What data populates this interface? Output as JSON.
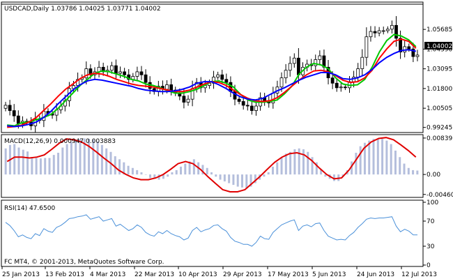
{
  "colors": {
    "frame": "#000000",
    "candle_up": "#ffffff",
    "candle_down": "#000000",
    "ma_fast": "#00c800",
    "ma_mid": "#ff0000",
    "ma_slow": "#0000ff",
    "macd_hist": "#b4bedc",
    "macd_signal": "#e00000",
    "rsi_line": "#4a90d9",
    "price_box": "#000000",
    "price_box_text": "#ffffff"
  },
  "chart_data": [
    {
      "type": "candlestick",
      "title": "USDCAD,Daily  1.03786 1.04025 1.03771 1.04002",
      "current_price": "1.04002",
      "ylim": [
        0.99,
        1.0725
      ],
      "y_tick_labels": [
        {
          "label": "1.05685",
          "value": 1.05685
        },
        {
          "label": "1.04390",
          "value": 1.0439
        },
        {
          "label": "1.03095",
          "value": 1.03095
        },
        {
          "label": "1.01800",
          "value": 1.018
        },
        {
          "label": "1.00505",
          "value": 1.00505
        },
        {
          "label": "0.99245",
          "value": 0.99245
        }
      ],
      "x_tick_labels": [
        "25 Jan 2013",
        "13 Feb 2013",
        "4 Mar 2013",
        "22 Mar 2013",
        "10 Apr 2013",
        "29 Apr 2013",
        "17 May 2013",
        "5 Jun 2013",
        "24 Jun 2013",
        "12 Jul 2013"
      ],
      "close": [
        1.007,
        1.0035,
        1.0,
        0.995,
        0.9965,
        0.996,
        0.9935,
        0.998,
        0.997,
        1.003,
        1.0015,
        1.0005,
        1.004,
        1.0065,
        1.01,
        1.018,
        1.02,
        1.024,
        1.025,
        1.031,
        1.027,
        1.029,
        1.032,
        1.029,
        1.03,
        1.033,
        1.028,
        1.029,
        1.027,
        1.024,
        1.026,
        1.029,
        1.027,
        1.022,
        1.018,
        1.016,
        1.0195,
        1.0175,
        1.0205,
        1.017,
        1.015,
        1.013,
        1.009,
        1.011,
        1.018,
        1.022,
        1.0185,
        1.02,
        1.0215,
        1.0255,
        1.027,
        1.024,
        1.022,
        1.016,
        1.011,
        1.0095,
        1.007,
        1.0065,
        1.0035,
        1.0065,
        1.012,
        1.0095,
        1.0085,
        1.015,
        1.019,
        1.025,
        1.03,
        1.0345,
        1.038,
        1.027,
        1.032,
        1.034,
        1.033,
        1.037,
        1.0395,
        1.032,
        1.025,
        1.0215,
        1.0185,
        1.019,
        1.0185,
        1.0225,
        1.0255,
        1.031,
        1.0385,
        1.052,
        1.0555,
        1.0545,
        1.056,
        1.056,
        1.057,
        1.0595,
        1.051,
        1.042,
        1.0455,
        1.044,
        1.039,
        1.04
      ],
      "series": [
        {
          "name": "MA fast",
          "values": [
            0.994,
            0.9935,
            0.9955,
            0.996,
            0.9975,
            0.999,
            1.001,
            1.005,
            1.01,
            1.015,
            1.02,
            1.024,
            1.028,
            1.0295,
            1.029,
            1.0275,
            1.026,
            1.024,
            1.023,
            1.021,
            1.02,
            1.0185,
            1.0165,
            1.015,
            1.015,
            1.016,
            1.0175,
            1.02,
            1.0225,
            1.023,
            1.0215,
            1.019,
            1.014,
            1.0105,
            1.009,
            1.009,
            1.0095,
            1.0105,
            1.0145,
            1.0195,
            1.0275,
            1.032,
            1.0345,
            1.0335,
            1.031,
            1.025,
            1.021,
            1.02,
            1.0205,
            1.024,
            1.032,
            1.042,
            1.0495,
            1.0535,
            1.0525,
            1.05,
            1.0455
          ]
        },
        {
          "name": "MA mid",
          "values": [
            0.9925,
            0.993,
            0.994,
            0.996,
            0.999,
            1.0035,
            1.008,
            1.013,
            1.0175,
            1.021,
            1.0245,
            1.027,
            1.028,
            1.0275,
            1.026,
            1.024,
            1.0225,
            1.021,
            1.02,
            1.0195,
            1.019,
            1.018,
            1.017,
            1.016,
            1.016,
            1.017,
            1.019,
            1.021,
            1.0225,
            1.022,
            1.02,
            1.017,
            1.014,
            1.0115,
            1.01,
            1.0095,
            1.01,
            1.012,
            1.0155,
            1.0195,
            1.0235,
            1.027,
            1.0295,
            1.03,
            1.029,
            1.0265,
            1.0235,
            1.022,
            1.0225,
            1.025,
            1.03,
            1.038,
            1.044,
            1.049,
            1.0505,
            1.049,
            1.0445
          ]
        },
        {
          "name": "MA slow",
          "values": [
            0.9935,
            0.993,
            0.9935,
            0.9945,
            0.996,
            0.999,
            1.003,
            1.008,
            1.0125,
            1.017,
            1.0205,
            1.023,
            1.024,
            1.0235,
            1.0225,
            1.0215,
            1.0205,
            1.0195,
            1.018,
            1.017,
            1.0165,
            1.016,
            1.016,
            1.0165,
            1.0175,
            1.019,
            1.0215,
            1.0225,
            1.0225,
            1.0205,
            1.018,
            1.015,
            1.0125,
            1.011,
            1.0105,
            1.0115,
            1.014,
            1.0165,
            1.0185,
            1.021,
            1.0235,
            1.0255,
            1.027,
            1.0285,
            1.0285,
            1.027,
            1.0245,
            1.024,
            1.025,
            1.027,
            1.0305,
            1.035,
            1.0385,
            1.041,
            1.043,
            1.0435,
            1.0425
          ]
        }
      ]
    },
    {
      "type": "bar",
      "title": "MACD(12,26,9) 0.000947 0.003883",
      "ylim": [
        -0.0048,
        0.0087
      ],
      "y_tick_labels": [
        {
          "label": "0.008393",
          "value": 0.008393
        },
        {
          "label": "0.00",
          "value": 0.0
        },
        {
          "label": "-0.004600",
          "value": -0.0046
        }
      ],
      "histogram": [
        0.006,
        0.0068,
        0.007,
        0.0062,
        0.0057,
        0.0053,
        0.004,
        0.0038,
        0.0037,
        0.0038,
        0.0038,
        0.0045,
        0.005,
        0.0062,
        0.007,
        0.0075,
        0.0078,
        0.0082,
        0.0083,
        0.0082,
        0.008,
        0.0076,
        0.0068,
        0.006,
        0.0052,
        0.0042,
        0.0035,
        0.0028,
        0.002,
        0.0015,
        0.001,
        0.0005,
        0.0,
        -0.0008,
        -0.001,
        -0.0012,
        -0.001,
        -0.0005,
        0.0005,
        0.001,
        0.0018,
        0.0025,
        0.003,
        0.0035,
        0.0028,
        0.0022,
        0.0015,
        0.0005,
        -0.0005,
        -0.0012,
        -0.0016,
        -0.002,
        -0.0024,
        -0.0028,
        -0.003,
        -0.0031,
        -0.0028,
        -0.002,
        -0.0012,
        -0.0005,
        0.0005,
        0.0018,
        0.0028,
        0.004,
        0.0048,
        0.0052,
        0.0058,
        0.006,
        0.0058,
        0.0052,
        0.004,
        0.0028,
        0.0012,
        -0.0005,
        -0.001,
        -0.0015,
        -0.0015,
        -0.0005,
        0.001,
        0.003,
        0.005,
        0.0065,
        0.0073,
        0.0078,
        0.0082,
        0.0083,
        0.0082,
        0.0078,
        0.007,
        0.0055,
        0.004,
        0.0025,
        0.0015,
        0.001,
        0.0009
      ],
      "series": [
        {
          "name": "signal",
          "values": [
            0.003,
            0.004,
            0.004,
            0.0038,
            0.004,
            0.0045,
            0.0058,
            0.0072,
            0.0082,
            0.008,
            0.0075,
            0.0065,
            0.0052,
            0.0038,
            0.0025,
            0.001,
            0.0,
            -0.0008,
            -0.0012,
            -0.0012,
            -0.0008,
            0.0,
            0.0012,
            0.0025,
            0.003,
            0.0025,
            0.0012,
            -0.0005,
            -0.002,
            -0.0035,
            -0.004,
            -0.004,
            -0.0035,
            -0.002,
            -0.0005,
            0.0012,
            0.0028,
            0.004,
            0.0048,
            0.005,
            0.0045,
            0.0032,
            0.0015,
            0.0,
            -0.001,
            -0.0008,
            0.001,
            0.0035,
            0.006,
            0.0075,
            0.0083,
            0.0085,
            0.008,
            0.0068,
            0.0055,
            0.004
          ]
        }
      ]
    },
    {
      "type": "line",
      "title": "RSI(14) 47.6500",
      "ylim": [
        0,
        100
      ],
      "y_tick_labels": [
        {
          "label": "100",
          "value": 100
        },
        {
          "label": "70",
          "value": 70
        },
        {
          "label": "30",
          "value": 30
        },
        {
          "label": "0",
          "value": 0
        }
      ],
      "series": [
        {
          "name": "RSI",
          "values": [
            68,
            63,
            55,
            45,
            48,
            44,
            42,
            50,
            47,
            58,
            54,
            52,
            60,
            63,
            68,
            74,
            75,
            77,
            78,
            80,
            73,
            75,
            77,
            70,
            72,
            74,
            62,
            65,
            60,
            55,
            58,
            64,
            60,
            52,
            48,
            46,
            53,
            50,
            55,
            50,
            47,
            45,
            40,
            43,
            55,
            60,
            53,
            56,
            58,
            63,
            64,
            58,
            54,
            44,
            38,
            36,
            33,
            33,
            30,
            36,
            46,
            42,
            41,
            52,
            58,
            64,
            67,
            70,
            72,
            55,
            62,
            64,
            61,
            66,
            67,
            55,
            46,
            43,
            40,
            41,
            40,
            47,
            52,
            60,
            66,
            73,
            75,
            74,
            75,
            75,
            76,
            77,
            62,
            53,
            57,
            54,
            48,
            48
          ]
        }
      ]
    }
  ],
  "footer": {
    "copyright": "FC MT4, © 2001-2013, MetaQuotes Software Corp."
  }
}
